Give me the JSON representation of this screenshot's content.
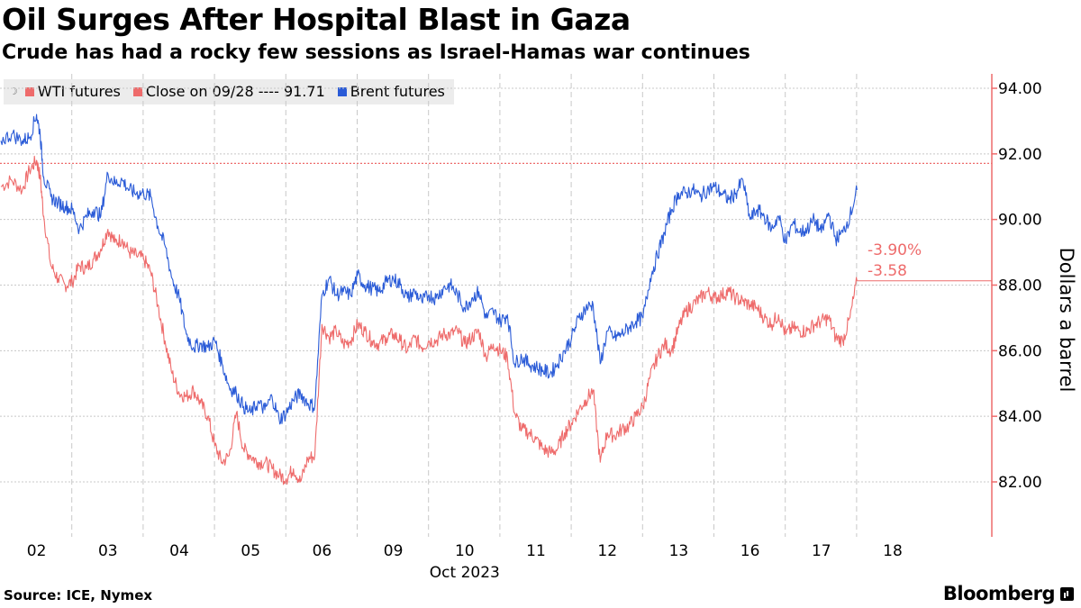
{
  "title": "Oil Surges After Hospital Blast in Gaza",
  "subtitle": "Crude has had a rocky few sessions as Israel-Hamas war continues",
  "colors": {
    "wti": "#ee6b6b",
    "brent": "#2a5bd7",
    "close_line": "#ee6b6b",
    "axis": "#ee6b6b"
  },
  "legend": {
    "pin_icon": "pin-icon",
    "items": [
      {
        "label": "WTI futures",
        "color": "#ee6b6b"
      },
      {
        "label": "Close on 09/28 ---- 91.71",
        "color": "#ee6b6b"
      },
      {
        "label": "Brent futures",
        "color": "#2a5bd7"
      }
    ]
  },
  "footer": {
    "source": "Source: ICE, Nymex",
    "brand": "Bloomberg",
    "brand_icon": "bloomberg-terminal-icon"
  },
  "chart_data": {
    "type": "line",
    "title": "Oil Surges After Hospital Blast in Gaza",
    "subtitle": "Crude has had a rocky few sessions as Israel-Hamas war continues",
    "xlabel": "Oct 2023",
    "ylabel": "Dollars a barrel",
    "y_axis_position": "right",
    "ylim": [
      80.5,
      94.6
    ],
    "yticks": [
      82,
      84,
      86,
      88,
      90,
      92,
      94
    ],
    "ytick_labels": [
      "82.00",
      "84.00",
      "86.00",
      "88.00",
      "90.00",
      "92.00",
      "94.00"
    ],
    "xlim": [
      0,
      14.6
    ],
    "x_categories": [
      "02",
      "03",
      "04",
      "05",
      "06",
      "09",
      "10",
      "11",
      "12",
      "13",
      "16",
      "17",
      "18"
    ],
    "grid": true,
    "reference_line": {
      "label": "Close on 09/28",
      "value": 91.71
    },
    "annotations": [
      {
        "text": "-3.90%",
        "series": "WTI futures"
      },
      {
        "text": "-3.58",
        "series": "WTI futures"
      }
    ],
    "last_value_marker": {
      "series": "WTI futures",
      "value": 88.13
    },
    "series": [
      {
        "name": "WTI futures",
        "color": "#ee6b6b",
        "x": [
          0.0,
          0.15,
          0.3,
          0.4,
          0.5,
          0.55,
          0.6,
          0.7,
          0.8,
          0.9,
          1.0,
          1.1,
          1.2,
          1.3,
          1.4,
          1.5,
          1.6,
          1.7,
          1.8,
          1.9,
          2.0,
          2.1,
          2.2,
          2.3,
          2.4,
          2.5,
          2.6,
          2.7,
          2.8,
          2.9,
          3.0,
          3.1,
          3.2,
          3.3,
          3.4,
          3.5,
          3.6,
          3.7,
          3.8,
          3.9,
          4.0,
          4.1,
          4.2,
          4.3,
          4.4,
          4.5,
          4.6,
          4.7,
          4.8,
          4.9,
          5.0,
          5.1,
          5.2,
          5.3,
          5.4,
          5.5,
          5.6,
          5.7,
          5.8,
          5.9,
          6.0,
          6.1,
          6.2,
          6.3,
          6.4,
          6.5,
          6.6,
          6.7,
          6.8,
          6.9,
          7.0,
          7.1,
          7.2,
          7.3,
          7.4,
          7.5,
          7.6,
          7.7,
          7.8,
          7.9,
          8.0,
          8.1,
          8.2,
          8.3,
          8.4,
          8.5,
          8.6,
          8.7,
          8.8,
          8.9,
          9.0,
          9.1,
          9.2,
          9.3,
          9.4,
          9.5,
          9.6,
          9.7,
          9.8,
          9.9,
          10.0,
          10.1,
          10.2,
          10.3,
          10.4,
          10.5,
          10.6,
          10.7,
          10.8,
          10.9,
          11.0,
          11.1,
          11.2,
          11.3,
          11.4,
          11.5,
          11.6,
          11.7,
          11.8,
          11.9,
          12.0
        ],
        "values": [
          91.0,
          91.2,
          90.9,
          91.5,
          91.8,
          91.3,
          90.1,
          88.6,
          88.2,
          88.0,
          88.1,
          88.6,
          88.5,
          88.8,
          89.1,
          89.7,
          89.3,
          89.4,
          89.0,
          88.9,
          88.8,
          88.4,
          87.4,
          86.3,
          85.3,
          84.7,
          84.6,
          84.8,
          84.4,
          84.0,
          83.1,
          82.6,
          82.8,
          84.1,
          83.0,
          82.8,
          82.6,
          82.6,
          82.4,
          82.2,
          82.1,
          82.4,
          82.0,
          82.7,
          82.8,
          86.8,
          86.4,
          86.6,
          86.2,
          86.3,
          86.8,
          86.6,
          86.3,
          86.2,
          86.4,
          86.5,
          86.3,
          86.0,
          86.4,
          86.1,
          86.3,
          86.3,
          86.5,
          86.5,
          86.6,
          86.2,
          86.4,
          86.6,
          85.8,
          86.2,
          86.0,
          85.8,
          84.1,
          83.6,
          83.5,
          83.3,
          83.0,
          82.9,
          83.0,
          83.5,
          83.8,
          84.2,
          84.5,
          84.8,
          82.6,
          83.5,
          83.4,
          83.6,
          83.7,
          84.0,
          84.3,
          85.2,
          85.8,
          86.2,
          86.0,
          86.7,
          87.2,
          87.4,
          87.6,
          87.8,
          87.6,
          87.7,
          87.8,
          87.6,
          87.5,
          87.4,
          87.3,
          87.0,
          86.8,
          87.1,
          86.5,
          86.7,
          86.6,
          86.6,
          86.8,
          86.9,
          87.0,
          86.4,
          86.3,
          87.0,
          88.13
        ]
      },
      {
        "name": "Brent futures",
        "color": "#2a5bd7",
        "x": [
          0.0,
          0.15,
          0.3,
          0.4,
          0.5,
          0.55,
          0.6,
          0.7,
          0.8,
          0.9,
          1.0,
          1.1,
          1.2,
          1.3,
          1.4,
          1.5,
          1.6,
          1.7,
          1.8,
          1.9,
          2.0,
          2.1,
          2.2,
          2.3,
          2.4,
          2.5,
          2.6,
          2.7,
          2.8,
          2.9,
          3.0,
          3.1,
          3.2,
          3.3,
          3.4,
          3.5,
          3.6,
          3.7,
          3.8,
          3.9,
          4.0,
          4.1,
          4.2,
          4.3,
          4.4,
          4.5,
          4.6,
          4.7,
          4.8,
          4.9,
          5.0,
          5.1,
          5.2,
          5.3,
          5.4,
          5.5,
          5.6,
          5.7,
          5.8,
          5.9,
          6.0,
          6.1,
          6.2,
          6.3,
          6.4,
          6.5,
          6.6,
          6.7,
          6.8,
          6.9,
          7.0,
          7.1,
          7.2,
          7.3,
          7.4,
          7.5,
          7.6,
          7.7,
          7.8,
          7.9,
          8.0,
          8.1,
          8.2,
          8.3,
          8.4,
          8.5,
          8.6,
          8.7,
          8.8,
          8.9,
          9.0,
          9.1,
          9.2,
          9.3,
          9.4,
          9.5,
          9.6,
          9.7,
          9.8,
          9.9,
          10.0,
          10.1,
          10.2,
          10.3,
          10.4,
          10.5,
          10.6,
          10.7,
          10.8,
          10.9,
          11.0,
          11.1,
          11.2,
          11.3,
          11.4,
          11.5,
          11.6,
          11.7,
          11.8,
          11.9,
          12.0
        ],
        "values": [
          92.4,
          92.6,
          92.4,
          92.5,
          93.2,
          92.6,
          91.3,
          90.7,
          90.5,
          90.4,
          90.3,
          89.7,
          90.1,
          90.3,
          90.1,
          91.4,
          91.1,
          91.2,
          90.9,
          90.8,
          90.8,
          90.7,
          89.8,
          89.2,
          88.2,
          87.6,
          86.5,
          86.1,
          86.2,
          86.1,
          86.3,
          85.6,
          84.9,
          84.7,
          84.3,
          84.1,
          84.4,
          84.2,
          84.6,
          83.9,
          84.1,
          84.5,
          84.7,
          84.4,
          84.3,
          87.7,
          88.2,
          87.7,
          87.8,
          87.7,
          88.3,
          88.0,
          87.9,
          87.8,
          88.1,
          88.2,
          88.0,
          87.6,
          87.8,
          87.5,
          87.7,
          87.6,
          87.9,
          88.0,
          87.7,
          87.3,
          87.6,
          87.8,
          87.0,
          87.2,
          86.9,
          87.1,
          85.6,
          85.8,
          85.6,
          85.5,
          85.4,
          85.3,
          85.6,
          86.0,
          86.4,
          87.0,
          87.3,
          87.4,
          85.6,
          86.6,
          86.4,
          86.5,
          86.7,
          86.9,
          87.0,
          88.2,
          88.9,
          89.6,
          90.3,
          90.8,
          90.8,
          90.9,
          90.7,
          90.9,
          91.0,
          90.8,
          90.6,
          90.8,
          91.2,
          90.0,
          90.3,
          90.1,
          89.7,
          90.1,
          89.3,
          89.9,
          89.6,
          89.7,
          90.0,
          89.6,
          90.2,
          89.4,
          89.6,
          90.1,
          90.9
        ]
      }
    ]
  }
}
